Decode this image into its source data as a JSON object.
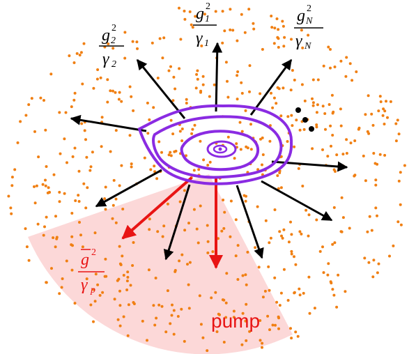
{
  "colors": {
    "dot": "#f07f12",
    "pump_region": "#fcd8d8",
    "arrow_black": "#000000",
    "arrow_red": "#e81414",
    "spiral": "#8a2be2"
  },
  "labels": {
    "g2": {
      "g": "g",
      "sup": "2",
      "sub": "2",
      "gamma": "γ"
    },
    "g1": {
      "g": "g",
      "sup": "2",
      "sub": "1",
      "gamma": "γ"
    },
    "gN": {
      "g": "g",
      "sup": "2",
      "sub": "N",
      "gamma": "γ"
    },
    "gp": {
      "g": "g",
      "sup": "2",
      "sub": "p",
      "gamma": "γ"
    },
    "pump": "pump"
  },
  "ellipsis_dots": 3
}
